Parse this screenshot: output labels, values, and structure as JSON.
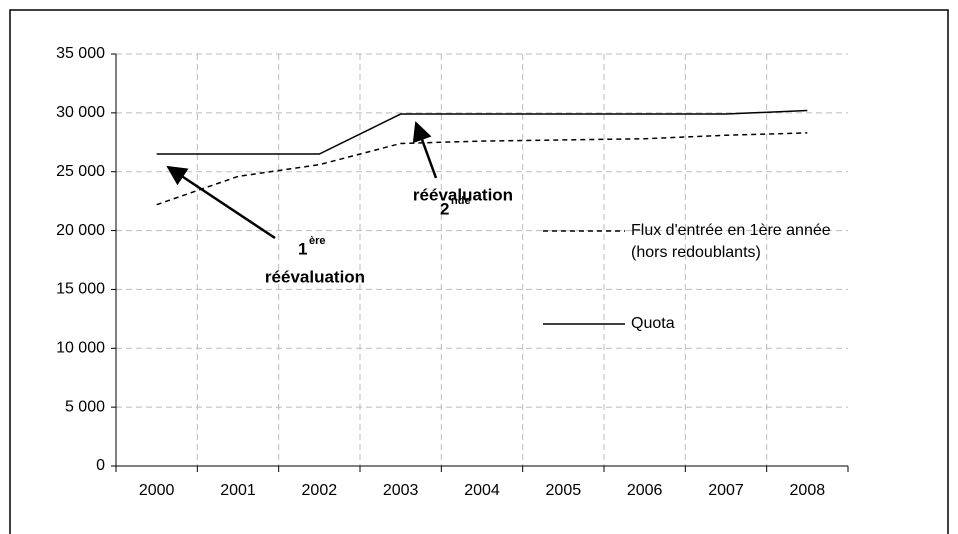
{
  "chart_data": {
    "type": "line",
    "categories": [
      "2000",
      "2001",
      "2002",
      "2003",
      "2004",
      "2005",
      "2006",
      "2007",
      "2008"
    ],
    "series": [
      {
        "name": "Flux d'entrée en 1ère année (hors redoublants)",
        "color": "#000000",
        "dash": true,
        "values": [
          22200,
          24600,
          25600,
          27400,
          27600,
          27700,
          27800,
          28100,
          28300
        ]
      },
      {
        "name": "Quota",
        "color": "#000000",
        "dash": false,
        "values": [
          26500,
          26500,
          26500,
          29900,
          29900,
          29900,
          29900,
          29900,
          30200
        ]
      }
    ],
    "ylim": [
      0,
      35000
    ],
    "yticks": [
      0,
      {
        "value": 5000,
        "label": "5 000"
      },
      {
        "value": 10000,
        "label": "10 000"
      },
      {
        "value": 15000,
        "label": "15 000"
      },
      {
        "value": 20000,
        "label": "20 000"
      },
      {
        "value": 25000,
        "label": "25 000"
      },
      {
        "value": 30000,
        "label": "30 000"
      },
      {
        "value": 35000,
        "label": "35 000"
      }
    ],
    "grid": true,
    "annotations": [
      {
        "number": "1",
        "suffix": "ère",
        "text": "réévaluation"
      },
      {
        "number": "2",
        "suffix": "nde",
        "text": "réévaluation"
      }
    ]
  }
}
